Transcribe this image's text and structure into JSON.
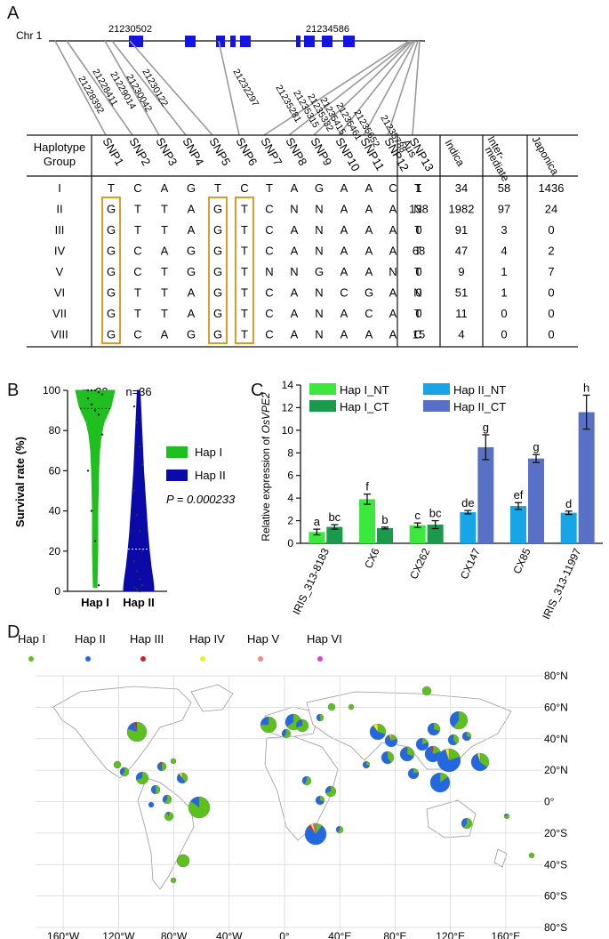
{
  "panels": {
    "a": "A",
    "b": "B",
    "c": "C",
    "d": "D"
  },
  "panel_a": {
    "chromosome": "Chr 1",
    "gene_start": "21230502",
    "gene_end": "21234586",
    "snp_positions": [
      "21228392",
      "21228411",
      "21229014",
      "21230042",
      "21230122",
      "21232297",
      "21235281",
      "21235315",
      "21235332",
      "21235415",
      "21235461",
      "21235652",
      "21235788"
    ],
    "table": {
      "haplotype_header": [
        "Haplotype",
        "Group"
      ],
      "snp_headers": [
        "SNP1",
        "SNP2",
        "SNP3",
        "SNP4",
        "SNP5",
        "SNP6",
        "SNP7",
        "SNP8",
        "SNP9",
        "SNP10",
        "SNP11",
        "SNP12",
        "SNP13"
      ],
      "group_headers": [
        "Aus",
        "Indica",
        "Inter-",
        "mediate",
        "Japonica"
      ],
      "rows": [
        {
          "group": "I",
          "snps": [
            "T",
            "C",
            "A",
            "G",
            "T",
            "C",
            "T",
            "A",
            "G",
            "A",
            "A",
            "C",
            "T"
          ],
          "counts": [
            "1",
            "34",
            "58",
            "1436"
          ]
        },
        {
          "group": "II",
          "snps": [
            "G",
            "T",
            "T",
            "A",
            "G",
            "T",
            "C",
            "N",
            "N",
            "A",
            "A",
            "A",
            "N"
          ],
          "counts": [
            "138",
            "1982",
            "97",
            "24"
          ]
        },
        {
          "group": "III",
          "snps": [
            "G",
            "T",
            "T",
            "A",
            "G",
            "T",
            "C",
            "A",
            "N",
            "A",
            "A",
            "A",
            "T"
          ],
          "counts": [
            "0",
            "91",
            "3",
            "0"
          ]
        },
        {
          "group": "IV",
          "snps": [
            "G",
            "C",
            "A",
            "G",
            "G",
            "T",
            "C",
            "A",
            "N",
            "A",
            "A",
            "A",
            "T"
          ],
          "counts": [
            "68",
            "47",
            "4",
            "2"
          ]
        },
        {
          "group": "V",
          "snps": [
            "G",
            "C",
            "T",
            "G",
            "G",
            "T",
            "N",
            "N",
            "G",
            "A",
            "A",
            "N",
            "T"
          ],
          "counts": [
            "0",
            "9",
            "1",
            "7"
          ]
        },
        {
          "group": "VI",
          "snps": [
            "G",
            "T",
            "T",
            "A",
            "G",
            "T",
            "C",
            "A",
            "N",
            "C",
            "G",
            "A",
            "N"
          ],
          "counts": [
            "0",
            "51",
            "1",
            "0"
          ]
        },
        {
          "group": "VII",
          "snps": [
            "G",
            "T",
            "T",
            "A",
            "G",
            "T",
            "C",
            "A",
            "N",
            "A",
            "C",
            "A",
            "T"
          ],
          "counts": [
            "0",
            "11",
            "0",
            "0"
          ]
        },
        {
          "group": "VIII",
          "snps": [
            "G",
            "C",
            "A",
            "G",
            "G",
            "T",
            "C",
            "A",
            "N",
            "A",
            "A",
            "A",
            "C"
          ],
          "counts": [
            "15",
            "4",
            "0",
            "0"
          ]
        }
      ]
    }
  },
  "chart_data": [
    {
      "type": "violin",
      "ylabel": "Survival rate (%)",
      "ylim": [
        0,
        100
      ],
      "yticks": [
        "0",
        "20",
        "40",
        "60",
        "80",
        "100"
      ],
      "categories": [
        "Hap I",
        "Hap II"
      ],
      "n_labels": [
        "n=20",
        "n=36"
      ],
      "legend": [
        "Hap I",
        "Hap II"
      ],
      "pvalue": "P = 0.000233",
      "colors": [
        "#1fbf1f",
        "#0a0aa8"
      ]
    },
    {
      "type": "bar",
      "ylabel_prefix": "Relative expression of ",
      "ylabel_gene": "OsVPE2",
      "ylim": [
        0,
        14
      ],
      "yticks": [
        "0",
        "2",
        "4",
        "6",
        "8",
        "10",
        "12",
        "14"
      ],
      "categories": [
        "IRIS_313-8183",
        "CX6",
        "CX262",
        "CX147",
        "CX85",
        "IRIS_313-11997"
      ],
      "series": [
        {
          "name": "Hap I_NT",
          "values": [
            1.0,
            3.9,
            1.6,
            null,
            null,
            null
          ],
          "errors": [
            0.25,
            0.45,
            0.2,
            null,
            null,
            null
          ],
          "letters": [
            "a",
            "f",
            "c",
            "",
            "",
            ""
          ],
          "color": "#3ce83c"
        },
        {
          "name": "Hap I_CT",
          "values": [
            1.45,
            1.35,
            1.65,
            null,
            null,
            null
          ],
          "errors": [
            0.2,
            0.08,
            0.35,
            null,
            null,
            null
          ],
          "letters": [
            "bc",
            "b",
            "bc",
            "",
            "",
            ""
          ],
          "color": "#1a9a4a"
        },
        {
          "name": "Hap II_NT",
          "values": [
            null,
            null,
            null,
            2.75,
            3.3,
            2.7
          ],
          "errors": [
            null,
            null,
            null,
            0.15,
            0.3,
            0.15
          ],
          "letters": [
            "",
            "",
            "",
            "de",
            "ef",
            "d"
          ],
          "color": "#16a6e8"
        },
        {
          "name": "Hap II_CT",
          "values": [
            null,
            null,
            null,
            8.5,
            7.5,
            11.6
          ],
          "errors": [
            null,
            null,
            null,
            1.1,
            0.35,
            1.5
          ],
          "letters": [
            "",
            "",
            "",
            "g",
            "g",
            "h"
          ],
          "color": "#5870c6"
        }
      ]
    }
  ],
  "panel_d": {
    "legend": [
      {
        "label": "Hap I",
        "color": "#5cc11c"
      },
      {
        "label": "Hap II",
        "color": "#2268e0"
      },
      {
        "label": "Hap III",
        "color": "#d0202a"
      },
      {
        "label": "Hap IV",
        "color": "#f2ec1a"
      },
      {
        "label": "Hap V",
        "color": "#f08a84"
      },
      {
        "label": "Hap VI",
        "color": "#e040d0"
      }
    ],
    "lat_labels": [
      "80°N",
      "60°N",
      "40°N",
      "20°N",
      "0°",
      "20°S",
      "40°S",
      "60°S",
      "80°S"
    ],
    "lon_labels": [
      "160°W",
      "120°W",
      "80°W",
      "40°W",
      "0°",
      "40°E",
      "80°E",
      "120°E",
      "160°E"
    ]
  }
}
